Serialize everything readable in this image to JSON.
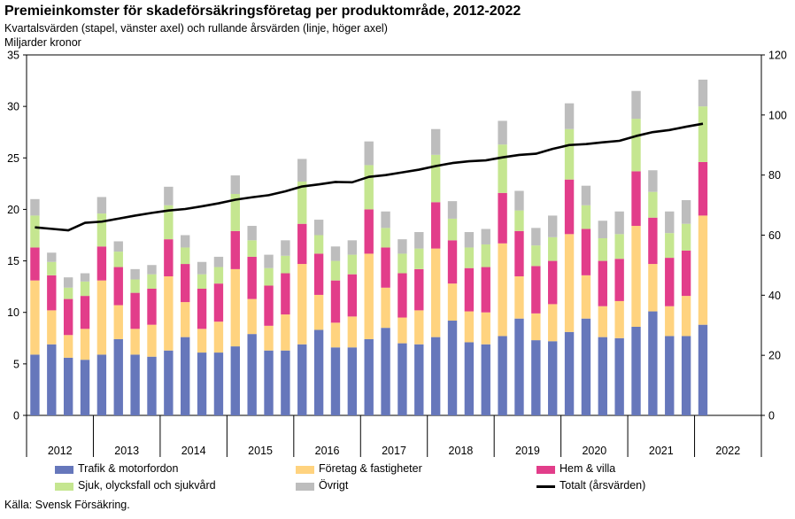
{
  "header": {
    "title": "Premieinkomster för skadeförsäkringsföretag per produktområde, 2012-2022",
    "subtitle": "Kvartalsvärden (stapel, vänster axel) och rullande årsvärden (linje, höger axel)",
    "unit": "Miljarder kronor"
  },
  "footer": {
    "source": "Källa: Svensk Försäkring."
  },
  "chart_data": {
    "type": "bar",
    "stacked": true,
    "title": "Premieinkomster för skadeförsäkringsföretag per produktområde, 2012-2022",
    "ylabel": "Miljarder kronor",
    "ylim": [
      0,
      35
    ],
    "yticks": [
      "0",
      "5",
      "10",
      "15",
      "20",
      "25",
      "30",
      "35"
    ],
    "y2lim": [
      0,
      120
    ],
    "y2ticks": [
      "0",
      "20",
      "40",
      "60",
      "80",
      "100",
      "120"
    ],
    "years": [
      "2012",
      "2013",
      "2014",
      "2015",
      "2016",
      "2017",
      "2018",
      "2019",
      "2020",
      "2021",
      "2022"
    ],
    "quarters_per_year": 4,
    "categories": [
      "2012 Q1",
      "2012 Q2",
      "2012 Q3",
      "2012 Q4",
      "2013 Q1",
      "2013 Q2",
      "2013 Q3",
      "2013 Q4",
      "2014 Q1",
      "2014 Q2",
      "2014 Q3",
      "2014 Q4",
      "2015 Q1",
      "2015 Q2",
      "2015 Q3",
      "2015 Q4",
      "2016 Q1",
      "2016 Q2",
      "2016 Q3",
      "2016 Q4",
      "2017 Q1",
      "2017 Q2",
      "2017 Q3",
      "2017 Q4",
      "2018 Q1",
      "2018 Q2",
      "2018 Q3",
      "2018 Q4",
      "2019 Q1",
      "2019 Q2",
      "2019 Q3",
      "2019 Q4",
      "2020 Q1",
      "2020 Q2",
      "2020 Q3",
      "2020 Q4",
      "2021 Q1",
      "2021 Q2",
      "2021 Q3",
      "2021 Q4",
      "2022 Q1"
    ],
    "series": [
      {
        "name": "Trafik & motorfordon",
        "color": "#6677bb",
        "values": [
          5.9,
          6.9,
          5.6,
          5.4,
          5.9,
          7.4,
          5.9,
          5.7,
          6.3,
          7.6,
          6.1,
          6.1,
          6.7,
          7.9,
          6.3,
          6.3,
          6.9,
          8.3,
          6.6,
          6.6,
          7.4,
          8.5,
          7.0,
          6.9,
          7.6,
          9.2,
          7.1,
          6.9,
          7.7,
          9.4,
          7.3,
          7.2,
          8.1,
          9.4,
          7.6,
          7.5,
          8.6,
          10.1,
          7.7,
          7.7,
          8.8
        ]
      },
      {
        "name": "Företag & fastigheter",
        "color": "#ffd37f",
        "values": [
          7.2,
          3.3,
          2.2,
          3.0,
          7.2,
          3.3,
          2.5,
          3.1,
          7.2,
          3.4,
          2.3,
          3.0,
          7.5,
          3.4,
          2.4,
          3.5,
          7.8,
          3.4,
          2.4,
          3.0,
          8.3,
          3.9,
          2.5,
          3.3,
          8.6,
          3.6,
          3.0,
          3.1,
          9.0,
          4.1,
          2.6,
          3.6,
          9.5,
          4.2,
          3.0,
          3.6,
          9.8,
          4.6,
          2.9,
          3.9,
          10.6
        ]
      },
      {
        "name": "Hem & villa",
        "color": "#e23d8a",
        "values": [
          3.2,
          3.4,
          3.5,
          3.2,
          3.3,
          3.7,
          3.5,
          3.5,
          3.6,
          3.7,
          3.9,
          3.7,
          3.7,
          4.1,
          3.9,
          4.0,
          3.9,
          4.0,
          4.1,
          4.1,
          4.3,
          3.9,
          4.3,
          4.0,
          4.5,
          4.2,
          4.2,
          4.4,
          4.9,
          4.4,
          4.6,
          4.2,
          5.3,
          4.5,
          4.4,
          4.1,
          5.3,
          4.5,
          4.7,
          4.4,
          5.2
        ]
      },
      {
        "name": "Sjuk, olycksfall och sjukvård",
        "color": "#c5e690",
        "values": [
          3.1,
          1.3,
          1.1,
          1.4,
          3.2,
          1.5,
          1.3,
          1.4,
          3.3,
          1.6,
          1.4,
          1.6,
          3.6,
          1.6,
          1.7,
          1.7,
          4.1,
          1.8,
          1.9,
          1.9,
          4.3,
          1.9,
          1.9,
          2.0,
          4.6,
          2.1,
          2.0,
          2.2,
          4.7,
          2.0,
          2.0,
          2.3,
          4.9,
          2.3,
          2.2,
          2.4,
          5.1,
          2.5,
          2.4,
          2.6,
          5.4
        ]
      },
      {
        "name": "Övrigt",
        "color": "#bdbdbd",
        "values": [
          1.6,
          0.9,
          1.0,
          0.8,
          1.6,
          1.0,
          1.0,
          0.9,
          1.8,
          1.2,
          1.2,
          1.0,
          1.8,
          1.4,
          1.3,
          1.5,
          2.2,
          1.5,
          1.4,
          1.4,
          2.3,
          1.6,
          1.4,
          1.6,
          2.5,
          1.7,
          1.5,
          1.5,
          2.3,
          1.9,
          1.7,
          2.1,
          2.5,
          1.9,
          1.7,
          2.2,
          2.7,
          2.1,
          2.1,
          2.3,
          2.6
        ]
      }
    ],
    "line": {
      "name": "Totalt (årsvärden)",
      "color": "#000000",
      "axis": "right",
      "values": [
        62.6,
        62.1,
        61.6,
        64.1,
        64.5,
        65.5,
        66.5,
        67.4,
        68.2,
        68.7,
        69.6,
        70.6,
        71.8,
        72.6,
        73.3,
        74.6,
        76.2,
        76.9,
        77.7,
        77.6,
        79.4,
        80.0,
        80.9,
        81.8,
        83.0,
        84.0,
        84.6,
        84.9,
        85.9,
        86.7,
        87.1,
        88.7,
        90.0,
        90.3,
        90.9,
        91.4,
        93.0,
        94.3,
        95.0,
        96.1,
        97.1
      ]
    }
  }
}
